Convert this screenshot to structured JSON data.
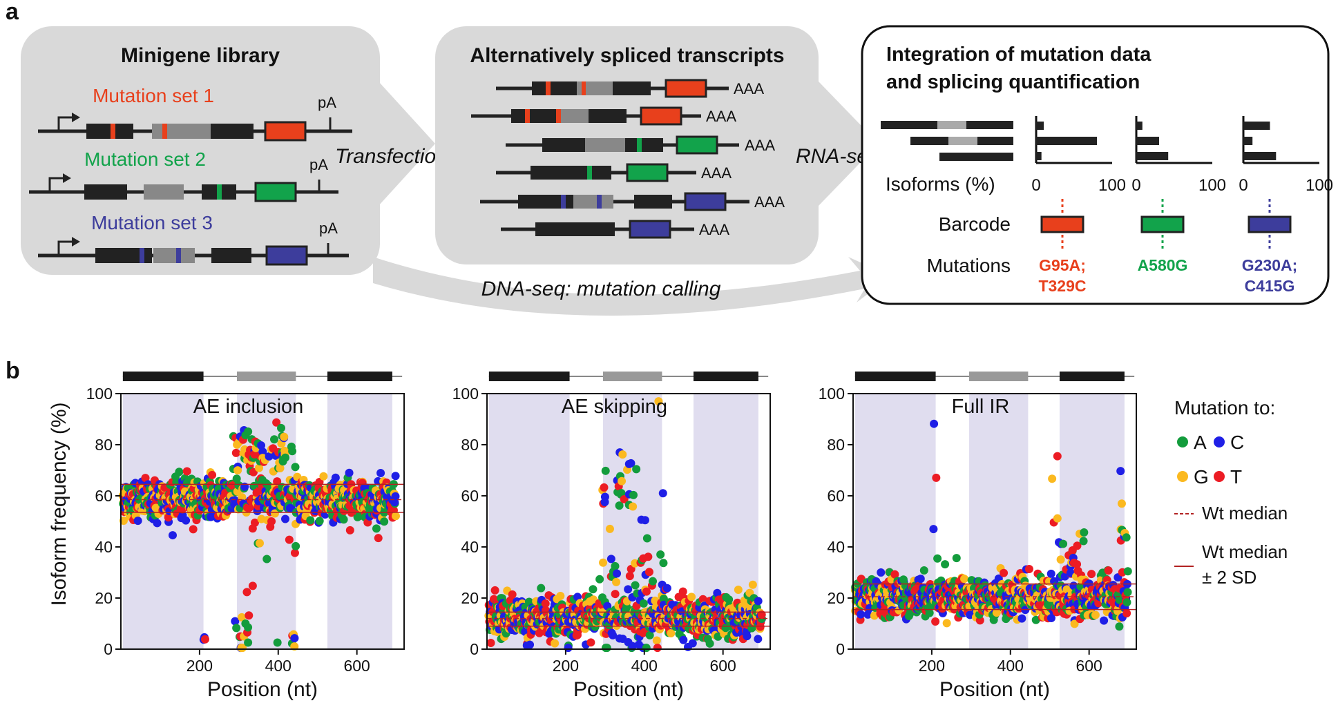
{
  "panels": {
    "a": {
      "label": "a",
      "library": {
        "title": "Minigene library",
        "poly_a": "pA",
        "sets": [
          {
            "name": "Mutation set 1",
            "color": "#e8401c"
          },
          {
            "name": "Mutation set 2",
            "color": "#12a34b"
          },
          {
            "name": "Mutation set 3",
            "color": "#3d3d9c"
          }
        ]
      },
      "transfection": "Transfection",
      "transcripts": {
        "title": "Alternatively spliced transcripts",
        "poly_a_tail": "AAA"
      },
      "rnaseq": "RNA-seq",
      "dnaseq": "DNA-seq: mutation calling",
      "integration": {
        "title_line1": "Integration of mutation data",
        "title_line2": "and splicing quantification",
        "isoforms_label": "Isoforms (%)",
        "axis_min": "0",
        "axis_max": "100",
        "barcode_label": "Barcode",
        "mutations_label": "Mutations",
        "columns": [
          {
            "isoform_pct": [
              10,
              80,
              7
            ],
            "color": "#e8401c",
            "mutations": [
              "G95A;",
              "T329C"
            ]
          },
          {
            "isoform_pct": [
              8,
              30,
              42
            ],
            "color": "#12a34b",
            "mutations": [
              "A580G"
            ]
          },
          {
            "isoform_pct": [
              35,
              12,
              43
            ],
            "color": "#3d3d9c",
            "mutations": [
              "G230A;",
              "C415G"
            ]
          }
        ]
      }
    },
    "b": {
      "label": "b",
      "ylabel": "Isoform frequency (%)",
      "xlabel": "Position (nt)",
      "legend": {
        "title": "Mutation to:",
        "bases": [
          {
            "name": "A",
            "color": "#139c3c"
          },
          {
            "name": "C",
            "color": "#1f1fe6"
          },
          {
            "name": "G",
            "color": "#fbb91f"
          },
          {
            "name": "T",
            "color": "#ec1c24"
          }
        ],
        "median_label": "Wt median",
        "sd_label_line1": "Wt median",
        "sd_label_line2": "± 2 SD",
        "line_color": "#b22222"
      }
    }
  },
  "chart_data": [
    {
      "type": "scatter",
      "title": "AE inclusion",
      "xlabel": "Position (nt)",
      "ylabel": "Isoform frequency (%)",
      "xlim": [
        0,
        720
      ],
      "ylim": [
        0,
        100
      ],
      "xticks": [
        200,
        400,
        600
      ],
      "yticks": [
        0,
        20,
        40,
        60,
        80,
        100
      ],
      "exon_regions": [
        [
          5,
          210
        ],
        [
          295,
          445
        ],
        [
          525,
          690
        ]
      ],
      "wt_median": 58.5,
      "wt_sd_band": [
        53.5,
        64.5
      ],
      "baseline_center": 58.5,
      "baseline_spread": 4,
      "hotspots": [
        {
          "x": [
            280,
            445
          ],
          "mean": 55,
          "spread": 18
        },
        {
          "x": [
            205,
            215
          ],
          "mean": 3,
          "spread": 1
        },
        {
          "x": [
            285,
            330
          ],
          "mean": 6,
          "spread": 5
        },
        {
          "x": [
            435,
            445
          ],
          "mean": 3,
          "spread": 3
        },
        {
          "x": [
            690,
            700
          ],
          "mean": 20,
          "spread": 5
        },
        {
          "x": [
            290,
            420
          ],
          "mean": 78,
          "spread": 4
        }
      ]
    },
    {
      "type": "scatter",
      "title": "AE skipping",
      "xlabel": "Position (nt)",
      "ylabel": "",
      "xlim": [
        0,
        720
      ],
      "ylim": [
        0,
        100
      ],
      "xticks": [
        200,
        400,
        600
      ],
      "yticks": [
        0,
        20,
        40,
        60,
        80,
        100
      ],
      "exon_regions": [
        [
          5,
          210
        ],
        [
          295,
          445
        ],
        [
          525,
          690
        ]
      ],
      "wt_median": 12,
      "wt_sd_band": [
        9,
        14.5
      ],
      "baseline_center": 12,
      "baseline_spread": 4,
      "hotspots": [
        {
          "x": [
            280,
            460
          ],
          "mean": 22,
          "spread": 12
        },
        {
          "x": [
            288,
            302
          ],
          "mean": 60,
          "spread": 16
        },
        {
          "x": [
            435,
            450
          ],
          "mean": 60,
          "spread": 18
        },
        {
          "x": [
            330,
            380
          ],
          "mean": 68,
          "spread": 8
        }
      ]
    },
    {
      "type": "scatter",
      "title": "Full IR",
      "xlabel": "Position (nt)",
      "ylabel": "",
      "xlim": [
        0,
        720
      ],
      "ylim": [
        0,
        100
      ],
      "xticks": [
        200,
        400,
        600
      ],
      "yticks": [
        0,
        20,
        40,
        60,
        80,
        100
      ],
      "exon_regions": [
        [
          5,
          210
        ],
        [
          295,
          445
        ],
        [
          525,
          690
        ]
      ],
      "wt_median": 20.5,
      "wt_sd_band": [
        15.5,
        25.5
      ],
      "baseline_center": 20.5,
      "baseline_spread": 4,
      "hotspots": [
        {
          "x": [
            205,
            215
          ],
          "mean": 55,
          "spread": 18
        },
        {
          "x": [
            520,
            590
          ],
          "mean": 32,
          "spread": 7
        },
        {
          "x": [
            680,
            700
          ],
          "mean": 45,
          "spread": 15
        },
        {
          "x": [
            500,
            520
          ],
          "mean": 62,
          "spread": 12
        }
      ]
    }
  ]
}
